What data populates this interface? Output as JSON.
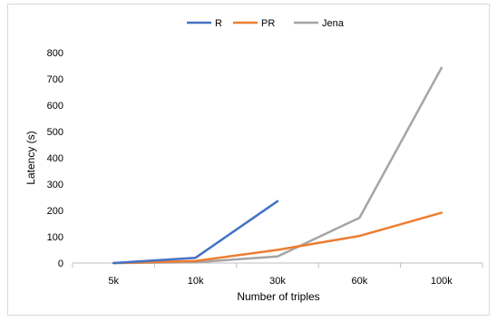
{
  "chart_data": {
    "type": "line",
    "title": "",
    "xlabel": "Number of triples",
    "ylabel": "Latency (s)",
    "categories": [
      "5k",
      "10k",
      "30k",
      "60k",
      "100k"
    ],
    "ylim": [
      0,
      800
    ],
    "yticks": [
      0,
      100,
      200,
      300,
      400,
      500,
      600,
      700,
      800
    ],
    "grid": false,
    "legend_position": "top",
    "series": [
      {
        "name": "R",
        "color": "#4472c4",
        "values": [
          0,
          20,
          235,
          null,
          null
        ]
      },
      {
        "name": "PR",
        "color": "#ed7d31",
        "values": [
          0,
          8,
          50,
          103,
          191
        ]
      },
      {
        "name": "Jena",
        "color": "#a5a5a5",
        "values": [
          0,
          3,
          25,
          172,
          742
        ]
      }
    ]
  }
}
